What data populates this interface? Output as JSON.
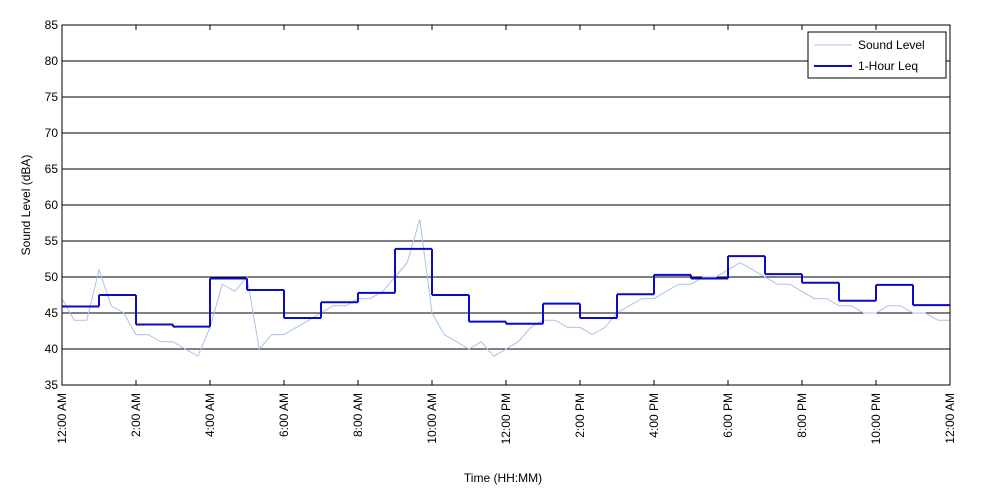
{
  "chart_data": {
    "type": "line",
    "xlabel": "Time (HH:MM)",
    "ylabel": "Sound Level (dBA)",
    "xlim": [
      0,
      24
    ],
    "ylim": [
      35,
      85
    ],
    "xticks": [
      {
        "value": 0,
        "label": "12:00 AM"
      },
      {
        "value": 2,
        "label": "2:00 AM"
      },
      {
        "value": 4,
        "label": "4:00 AM"
      },
      {
        "value": 6,
        "label": "6:00 AM"
      },
      {
        "value": 8,
        "label": "8:00 AM"
      },
      {
        "value": 10,
        "label": "10:00 AM"
      },
      {
        "value": 12,
        "label": "12:00 PM"
      },
      {
        "value": 14,
        "label": "2:00 PM"
      },
      {
        "value": 16,
        "label": "4:00 PM"
      },
      {
        "value": 18,
        "label": "6:00 PM"
      },
      {
        "value": 20,
        "label": "8:00 PM"
      },
      {
        "value": 22,
        "label": "10:00 PM"
      },
      {
        "value": 24,
        "label": "12:00 AM"
      }
    ],
    "yticks": [
      35,
      40,
      45,
      50,
      55,
      60,
      65,
      70,
      75,
      80,
      85
    ],
    "grid": true,
    "legend": "upper right",
    "series": [
      {
        "name": "Sound Level",
        "color": "#a9c1ee",
        "style": "line",
        "x": [
          0,
          0.33,
          0.67,
          1,
          1.33,
          1.67,
          2,
          2.33,
          2.67,
          3,
          3.33,
          3.67,
          4,
          4.33,
          4.67,
          5,
          5.33,
          5.67,
          6,
          6.33,
          6.67,
          7,
          7.33,
          7.67,
          8,
          8.33,
          8.67,
          9,
          9.33,
          9.67,
          10,
          10.33,
          10.67,
          11,
          11.33,
          11.67,
          12,
          12.33,
          12.67,
          13,
          13.33,
          13.67,
          14,
          14.33,
          14.67,
          15,
          15.33,
          15.67,
          16,
          16.33,
          16.67,
          17,
          17.33,
          17.67,
          18,
          18.33,
          18.67,
          19,
          19.33,
          19.67,
          20,
          20.33,
          20.67,
          21,
          21.33,
          21.67,
          22,
          22.33,
          22.67,
          23,
          23.33,
          23.67,
          24
        ],
        "values": [
          47,
          44,
          44,
          51,
          46,
          45,
          42,
          42,
          41,
          41,
          40,
          39,
          43,
          49,
          48,
          50,
          40,
          42,
          42,
          43,
          44,
          45,
          46,
          46,
          47,
          47,
          48,
          50,
          52,
          58,
          45,
          42,
          41,
          40,
          41,
          39,
          40,
          41,
          43,
          44,
          44,
          43,
          43,
          42,
          43,
          45,
          46,
          47,
          47,
          48,
          49,
          49,
          50,
          50,
          51,
          52,
          51,
          50,
          49,
          49,
          48,
          47,
          47,
          46,
          46,
          45,
          45,
          46,
          46,
          45,
          45,
          44,
          44
        ]
      },
      {
        "name": "1-Hour Leq",
        "color": "#0a0ac8",
        "style": "step",
        "x": [
          0,
          1,
          2,
          3,
          4,
          5,
          6,
          7,
          8,
          9,
          10,
          11,
          12,
          13,
          14,
          15,
          16,
          17,
          18,
          19,
          20,
          21,
          22,
          23
        ],
        "values": [
          45.9,
          47.5,
          43.4,
          43.1,
          49.8,
          48.2,
          44.3,
          46.5,
          47.8,
          53.9,
          47.5,
          43.8,
          43.5,
          46.3,
          44.3,
          47.6,
          50.3,
          49.8,
          52.9,
          50.4,
          49.2,
          46.7,
          48.9,
          46.1
        ]
      }
    ]
  }
}
